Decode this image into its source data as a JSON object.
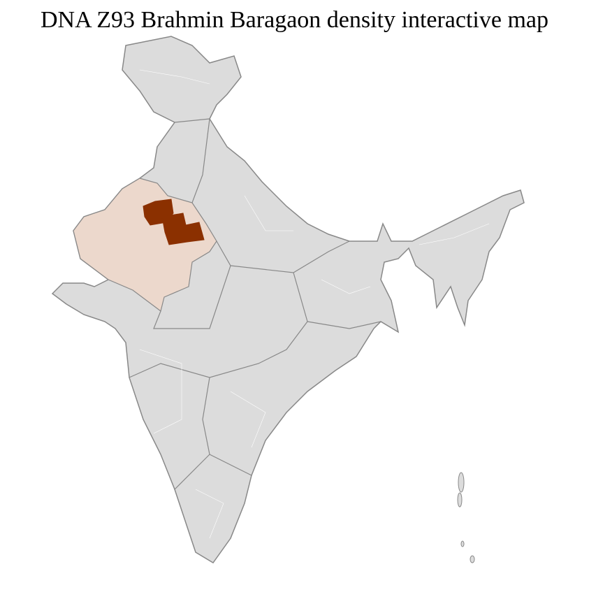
{
  "title": "DNA Z93 Brahmin Baragaon density interactive map",
  "colors": {
    "no_data": "#dcdcdc",
    "low_density": "#ecd8cc",
    "high_density": "#8b3000",
    "state_border": "#888888",
    "district_border": "#ffffff"
  },
  "regions": [
    {
      "name": "Rajasthan",
      "level": "low"
    },
    {
      "name": "high density districts (north-east Rajasthan)",
      "level": "high"
    }
  ]
}
